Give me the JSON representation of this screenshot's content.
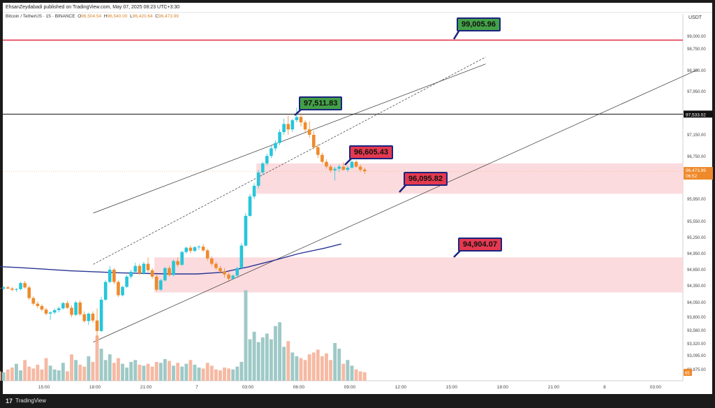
{
  "header": {
    "published_line": "EhsanZeydabadi published on TradingView.com, May 07, 2025 08:23 UTC+3:30"
  },
  "symbol": {
    "name": "Bitcoin / TetherUS · 15 · BINANCE",
    "open_label": "O",
    "open": "96,504.54",
    "high_label": "H",
    "high": "96,540.00",
    "low_label": "L",
    "low": "96,420.64",
    "close_label": "C",
    "close": "96,473.99"
  },
  "currency": "USDT",
  "footer": {
    "brand": "TradingView",
    "logo": "17"
  },
  "colors": {
    "up": "#26c6da",
    "down": "#ef8a2b",
    "ma": "#283593",
    "zone": "#fbd5d8",
    "resistance": "#e53950",
    "vol_up": "#9ec9c6",
    "vol_down": "#f6b9a3"
  },
  "chart_data": {
    "type": "candlestick",
    "ylim": [
      92750,
      99300
    ],
    "y_ticks": [
      "99,000.00",
      "98,750.00",
      "98,350.00",
      "97,950.00",
      "97,150.00",
      "96,750.00",
      "95,950.00",
      "95,550.00",
      "95,250.00",
      "94,950.00",
      "94,650.00",
      "94,350.00",
      "94,050.00",
      "93,800.00",
      "93,560.00",
      "93,320.00",
      "93,095.00",
      "92,875.00"
    ],
    "y_tick_values": [
      99000,
      98750,
      98350,
      97950,
      97150,
      96750,
      95950,
      95550,
      95250,
      94950,
      94650,
      94350,
      94050,
      93800,
      93560,
      93320,
      93095,
      92875
    ],
    "x_ticks": [
      "15:00",
      "18:00",
      "21:00",
      "7",
      "03:00",
      "06:00",
      "09:00",
      "12:00",
      "15:00",
      "18:00",
      "21:00",
      "8",
      "03:00"
    ],
    "x_tick_hours": [
      15,
      18,
      21,
      24,
      27,
      30,
      33,
      36,
      39,
      42,
      45,
      48,
      51
    ],
    "time_start_hour": 12.125,
    "candles": [
      [
        94330,
        94360,
        94280,
        94310
      ],
      [
        94310,
        94330,
        94260,
        94300
      ],
      [
        94300,
        94340,
        94270,
        94320
      ],
      [
        94320,
        94350,
        94290,
        94300
      ],
      [
        94300,
        94330,
        94250,
        94280
      ],
      [
        94280,
        94310,
        94240,
        94290
      ],
      [
        94290,
        94420,
        94270,
        94400
      ],
      [
        94400,
        94440,
        94300,
        94320
      ],
      [
        94320,
        94350,
        94100,
        94130
      ],
      [
        94130,
        94160,
        94000,
        94030
      ],
      [
        94030,
        94070,
        93950,
        93990
      ],
      [
        93990,
        94020,
        93900,
        93930
      ],
      [
        93930,
        93960,
        93830,
        93860
      ],
      [
        93860,
        93900,
        93750,
        93880
      ],
      [
        93880,
        93950,
        93850,
        93920
      ],
      [
        93920,
        93980,
        93880,
        93950
      ],
      [
        93950,
        94060,
        93930,
        94040
      ],
      [
        94040,
        94080,
        93940,
        93960
      ],
      [
        93960,
        94000,
        93800,
        93840
      ],
      [
        93840,
        94080,
        93820,
        94050
      ],
      [
        94050,
        94090,
        93820,
        93850
      ],
      [
        93850,
        93900,
        93700,
        93730
      ],
      [
        93730,
        93880,
        93660,
        93860
      ],
      [
        93860,
        93900,
        93700,
        93740
      ],
      [
        93740,
        93950,
        93350,
        93550
      ],
      [
        93550,
        94150,
        93530,
        94100
      ],
      [
        94100,
        94450,
        94080,
        94420
      ],
      [
        94420,
        94720,
        94400,
        94650
      ],
      [
        94650,
        94680,
        94380,
        94420
      ],
      [
        94420,
        94450,
        94150,
        94180
      ],
      [
        94180,
        94350,
        94160,
        94330
      ],
      [
        94330,
        94550,
        94310,
        94520
      ],
      [
        94520,
        94650,
        94480,
        94610
      ],
      [
        94610,
        94780,
        94580,
        94720
      ],
      [
        94720,
        94760,
        94550,
        94580
      ],
      [
        94580,
        94800,
        94560,
        94760
      ],
      [
        94760,
        94880,
        94600,
        94640
      ],
      [
        94640,
        94680,
        94480,
        94520
      ],
      [
        94520,
        94560,
        94250,
        94280
      ],
      [
        94280,
        94480,
        94260,
        94450
      ],
      [
        94450,
        94700,
        94430,
        94680
      ],
      [
        94680,
        94720,
        94520,
        94550
      ],
      [
        94550,
        94840,
        94530,
        94810
      ],
      [
        94810,
        94880,
        94700,
        94740
      ],
      [
        94740,
        95000,
        94720,
        94980
      ],
      [
        94980,
        95080,
        94950,
        95060
      ],
      [
        95060,
        95100,
        94960,
        95000
      ],
      [
        95000,
        95090,
        94980,
        95070
      ],
      [
        95070,
        95110,
        95020,
        95080
      ],
      [
        95080,
        95130,
        94980,
        95010
      ],
      [
        95010,
        95040,
        94820,
        94860
      ],
      [
        94860,
        94900,
        94720,
        94760
      ],
      [
        94760,
        94800,
        94640,
        94680
      ],
      [
        94680,
        94720,
        94580,
        94620
      ],
      [
        94620,
        94680,
        94500,
        94560
      ],
      [
        94560,
        94600,
        94420,
        94480
      ],
      [
        94480,
        94560,
        94460,
        94540
      ],
      [
        94540,
        94700,
        94520,
        94680
      ],
      [
        94680,
        95150,
        94660,
        95100
      ],
      [
        95100,
        95700,
        95080,
        95650
      ],
      [
        95650,
        96050,
        95630,
        96000
      ],
      [
        96000,
        96250,
        95950,
        96200
      ],
      [
        96200,
        96500,
        96150,
        96450
      ],
      [
        96450,
        96650,
        96400,
        96620
      ],
      [
        96620,
        96800,
        96580,
        96760
      ],
      [
        96760,
        96950,
        96720,
        96900
      ],
      [
        96900,
        97050,
        96850,
        97000
      ],
      [
        97000,
        97250,
        96960,
        97200
      ],
      [
        97200,
        97450,
        97150,
        97350
      ],
      [
        97350,
        97500,
        97150,
        97250
      ],
      [
        97250,
        97450,
        97200,
        97420
      ],
      [
        97420,
        97650,
        97380,
        97480
      ],
      [
        97480,
        97550,
        97300,
        97380
      ],
      [
        97380,
        97420,
        97200,
        97250
      ],
      [
        97250,
        97400,
        97100,
        97150
      ],
      [
        97150,
        97220,
        96880,
        96920
      ],
      [
        96920,
        96980,
        96720,
        96780
      ],
      [
        96780,
        96820,
        96620,
        96650
      ],
      [
        96650,
        96700,
        96520,
        96560
      ],
      [
        96560,
        96600,
        96450,
        96490
      ],
      [
        96490,
        96560,
        96300,
        96520
      ],
      [
        96520,
        96600,
        96460,
        96560
      ],
      [
        96560,
        96640,
        96480,
        96500
      ],
      [
        96500,
        96580,
        96460,
        96540
      ],
      [
        96540,
        96680,
        96520,
        96650
      ],
      [
        96650,
        96680,
        96540,
        96560
      ],
      [
        96560,
        96600,
        96460,
        96500
      ],
      [
        96504.54,
        96540,
        96420.64,
        96473.99
      ]
    ],
    "volumes": [
      8,
      10,
      9,
      12,
      14,
      18,
      11,
      22,
      15,
      13,
      17,
      12,
      24,
      16,
      12,
      11,
      19,
      10,
      28,
      22,
      17,
      15,
      26,
      20,
      48,
      34,
      22,
      28,
      19,
      24,
      18,
      14,
      20,
      22,
      17,
      16,
      18,
      15,
      20,
      19,
      23,
      21,
      16,
      19,
      15,
      18,
      22,
      17,
      14,
      13,
      19,
      16,
      12,
      11,
      14,
      13,
      12,
      15,
      20,
      96,
      44,
      52,
      41,
      46,
      50,
      44,
      58,
      62,
      36,
      42,
      30,
      26,
      24,
      22,
      28,
      30,
      33,
      26,
      29,
      22,
      40,
      34,
      18,
      22,
      16,
      12,
      10,
      9
    ],
    "ma_points": [
      [
        12.125,
        94710
      ],
      [
        13.5,
        94690
      ],
      [
        15,
        94660
      ],
      [
        16.5,
        94630
      ],
      [
        18,
        94610
      ],
      [
        19.5,
        94590
      ],
      [
        21,
        94580
      ],
      [
        22.5,
        94570
      ],
      [
        24,
        94570
      ],
      [
        25.5,
        94600
      ],
      [
        27,
        94700
      ],
      [
        28.5,
        94820
      ],
      [
        30,
        94950
      ],
      [
        31.5,
        95050
      ],
      [
        32.5,
        95130
      ]
    ],
    "annotations": [
      {
        "label": "99,005.96",
        "value": 99005.96,
        "kind": "target"
      },
      {
        "label": "97,511.83",
        "value": 97511.83,
        "kind": "target"
      },
      {
        "label": "96,605.43",
        "value": 96605.43,
        "kind": "resistance"
      },
      {
        "label": "96,095.82",
        "value": 96095.82,
        "kind": "support"
      },
      {
        "label": "94,904.07",
        "value": 94904.07,
        "kind": "support"
      }
    ],
    "horizontal_lines": [
      {
        "value": 98925,
        "color": "#e53950",
        "label": ""
      },
      {
        "value": 97533.02,
        "color": "#111111",
        "label": "97,533.02"
      }
    ],
    "zones": [
      {
        "from_hour": 27.5,
        "to_hour": 53.8,
        "low": 96050,
        "high": 96620
      },
      {
        "from_hour": 21.5,
        "to_hour": 53.8,
        "low": 94230,
        "high": 94880
      }
    ],
    "current_price": {
      "label": "96,473.99",
      "countdown": "06:52"
    },
    "volume_badge": "65"
  }
}
